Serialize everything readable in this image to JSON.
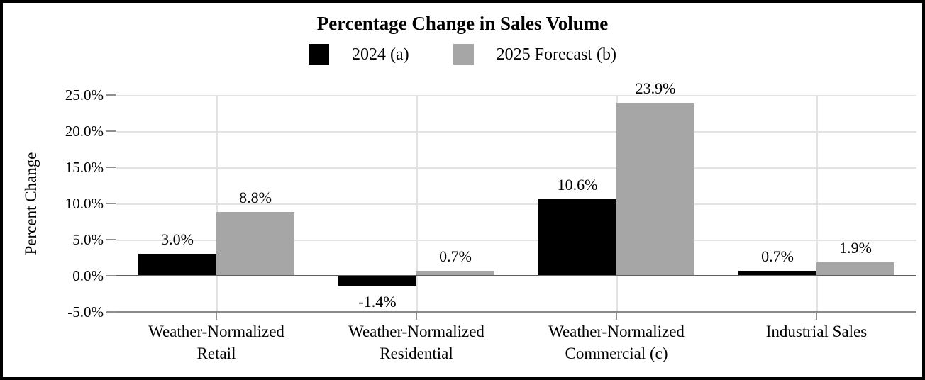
{
  "frame": {
    "background": "#ffffff",
    "border_color": "#000000"
  },
  "chart_data": {
    "type": "bar",
    "title": "Percentage Change in Sales Volume",
    "ylabel": "Percent Change",
    "xlabel": "",
    "categories": [
      "Weather-Normalized Retail",
      "Weather-Normalized Residential",
      "Weather-Normalized Commercial (c)",
      "Industrial Sales"
    ],
    "category_label_lines": [
      [
        "Weather-Normalized",
        "Retail"
      ],
      [
        "Weather-Normalized",
        "Residential"
      ],
      [
        "Weather-Normalized",
        "Commercial (c)"
      ],
      [
        "Industrial Sales"
      ]
    ],
    "series": [
      {
        "name": "2024 (a)",
        "color": "#000000",
        "values": [
          3.0,
          -1.4,
          10.6,
          0.7
        ],
        "value_labels": [
          "3.0%",
          "-1.4%",
          "10.6%",
          "0.7%"
        ]
      },
      {
        "name": "2025 Forecast (b)",
        "color": "#a6a6a6",
        "values": [
          8.8,
          0.7,
          23.9,
          1.9
        ],
        "value_labels": [
          "8.8%",
          "0.7%",
          "23.9%",
          "1.9%"
        ]
      }
    ],
    "y_axis": {
      "min": -5,
      "max": 25,
      "step": 5,
      "tick_values": [
        25,
        20,
        15,
        10,
        5,
        0,
        -5
      ],
      "tick_labels": [
        "25.0%",
        "20.0%",
        "15.0%",
        "10.0%",
        "5.0%",
        "0.0%",
        "-5.0%"
      ]
    },
    "grid": true,
    "legend_position": "top",
    "colors": {
      "gridline": "#e3e3e3",
      "zero_line": "#5f5f5f",
      "axis_line": "#8a8a8a",
      "tick": "#8f8f8f"
    }
  }
}
